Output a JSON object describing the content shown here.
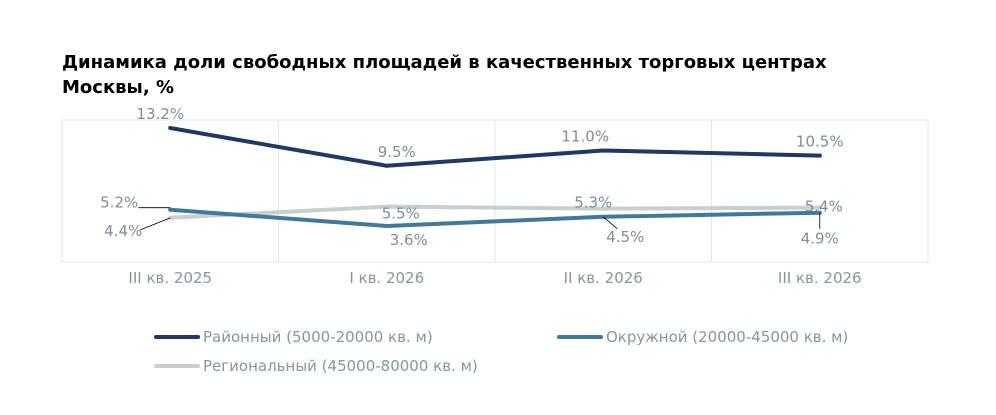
{
  "chart_data": {
    "type": "line",
    "title": "Динамика доли свободных площадей в качественных торговых центрах Москвы, %",
    "xlabel": "",
    "ylabel": "",
    "categories": [
      "III кв. 2025",
      "I кв. 2026",
      "II кв. 2026",
      "III кв. 2026"
    ],
    "series": [
      {
        "name": "Районный (5000-20000 кв. м)",
        "color": "#1f3864",
        "values": [
          13.2,
          9.5,
          11.0,
          10.5
        ],
        "labels": [
          "13.2%",
          "9.5%",
          "11.0%",
          "10.5%"
        ]
      },
      {
        "name": "Окружной (20000-45000 кв. м)",
        "color": "#41799c",
        "values": [
          5.2,
          3.6,
          4.5,
          4.9
        ],
        "labels": [
          "5.2%",
          "3.6%",
          "4.5%",
          "4.9%"
        ]
      },
      {
        "name": "Региональный (45000-80000 кв. м)",
        "color": "#c9ced1",
        "values": [
          4.4,
          5.5,
          5.3,
          5.4
        ],
        "labels": [
          "4.4%",
          "5.5%",
          "5.3%",
          "5.4%"
        ]
      }
    ],
    "y_axis_visible": false,
    "vertical_gridlines": true,
    "horizontal_gridlines": false,
    "legend_position": "bottom"
  }
}
